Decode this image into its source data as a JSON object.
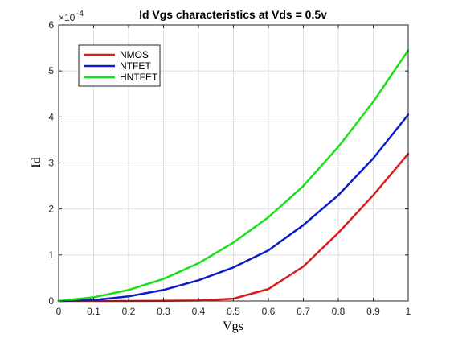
{
  "chart_data": {
    "type": "line",
    "title": "Id Vgs characteristics at Vds = 0.5v",
    "xlabel": "Vgs",
    "ylabel": "Id",
    "y_exponent_base": "×10",
    "y_exponent_power": "-4",
    "xlim": [
      0,
      1
    ],
    "ylim": [
      0,
      6
    ],
    "xticks": [
      0,
      0.1,
      0.2,
      0.3,
      0.4,
      0.5,
      0.6,
      0.7,
      0.8,
      0.9,
      1
    ],
    "xtick_labels": [
      "0",
      "0.1",
      "0.2",
      "0.3",
      "0.4",
      "0.5",
      "0.6",
      "0.7",
      "0.8",
      "0.9",
      "1"
    ],
    "yticks": [
      0,
      1,
      2,
      3,
      4,
      5,
      6
    ],
    "ytick_labels": [
      "0",
      "1",
      "2",
      "3",
      "4",
      "5",
      "6"
    ],
    "grid": true,
    "legend_position": "top-left",
    "x": [
      0,
      0.1,
      0.2,
      0.3,
      0.4,
      0.5,
      0.6,
      0.7,
      0.8,
      0.9,
      1
    ],
    "series": [
      {
        "name": "NMOS",
        "color": "#dd1c1c",
        "values": [
          0,
          0,
          0,
          0.005,
          0.01,
          0.05,
          0.26,
          0.75,
          1.48,
          2.3,
          3.2
        ]
      },
      {
        "name": "NTFET",
        "color": "#0c1cc8",
        "values": [
          0,
          0.02,
          0.1,
          0.24,
          0.45,
          0.73,
          1.1,
          1.65,
          2.3,
          3.1,
          4.05
        ]
      },
      {
        "name": "HNTFET",
        "color": "#1ae01a",
        "values": [
          0,
          0.08,
          0.24,
          0.48,
          0.82,
          1.27,
          1.82,
          2.5,
          3.35,
          4.33,
          5.45
        ]
      }
    ]
  }
}
